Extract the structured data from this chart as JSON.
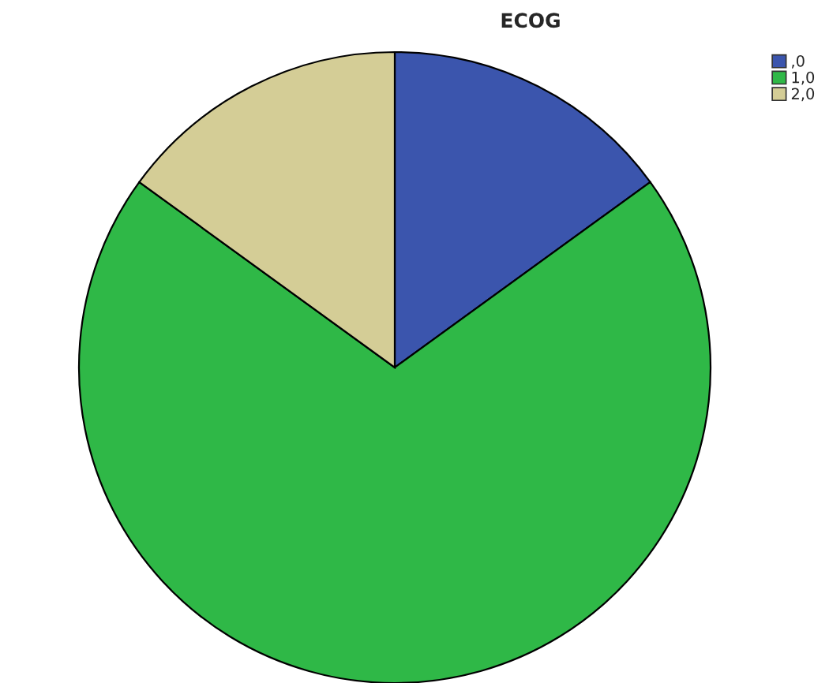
{
  "chart_data": {
    "type": "pie",
    "title": "ECOG",
    "categories": [
      ",0",
      "1,0",
      "2,0"
    ],
    "values": [
      15,
      70,
      15
    ],
    "colors": [
      "#3b55ad",
      "#2fb847",
      "#d4cd96"
    ],
    "legend": "top right"
  }
}
